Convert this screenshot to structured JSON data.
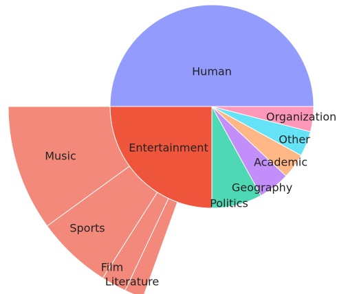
{
  "chart_data": {
    "type": "sunburst",
    "series": [
      {
        "name": "Human",
        "value": 50,
        "color": "#939bfc"
      },
      {
        "name": "Organization",
        "value": 4,
        "color": "#ff97b8"
      },
      {
        "name": "Other",
        "value": 4,
        "color": "#64e3f6"
      },
      {
        "name": "Academic",
        "value": 4,
        "color": "#ffb786"
      },
      {
        "name": "Geography",
        "value": 5,
        "color": "#c28ef9"
      },
      {
        "name": "Politics",
        "value": 8,
        "color": "#4fd8b4"
      },
      {
        "name": "Entertainment",
        "value": 25,
        "color": "#ef553b",
        "children": [
          {
            "name": "Music",
            "value": 10,
            "color": "#f2897a"
          },
          {
            "name": "Sports",
            "value": 6,
            "color": "#f2897a"
          },
          {
            "name": "Film",
            "value": 2,
            "color": "#f2897a"
          },
          {
            "name": "Literature",
            "value": 1.5,
            "color": "#f2897a"
          }
        ]
      }
    ]
  }
}
